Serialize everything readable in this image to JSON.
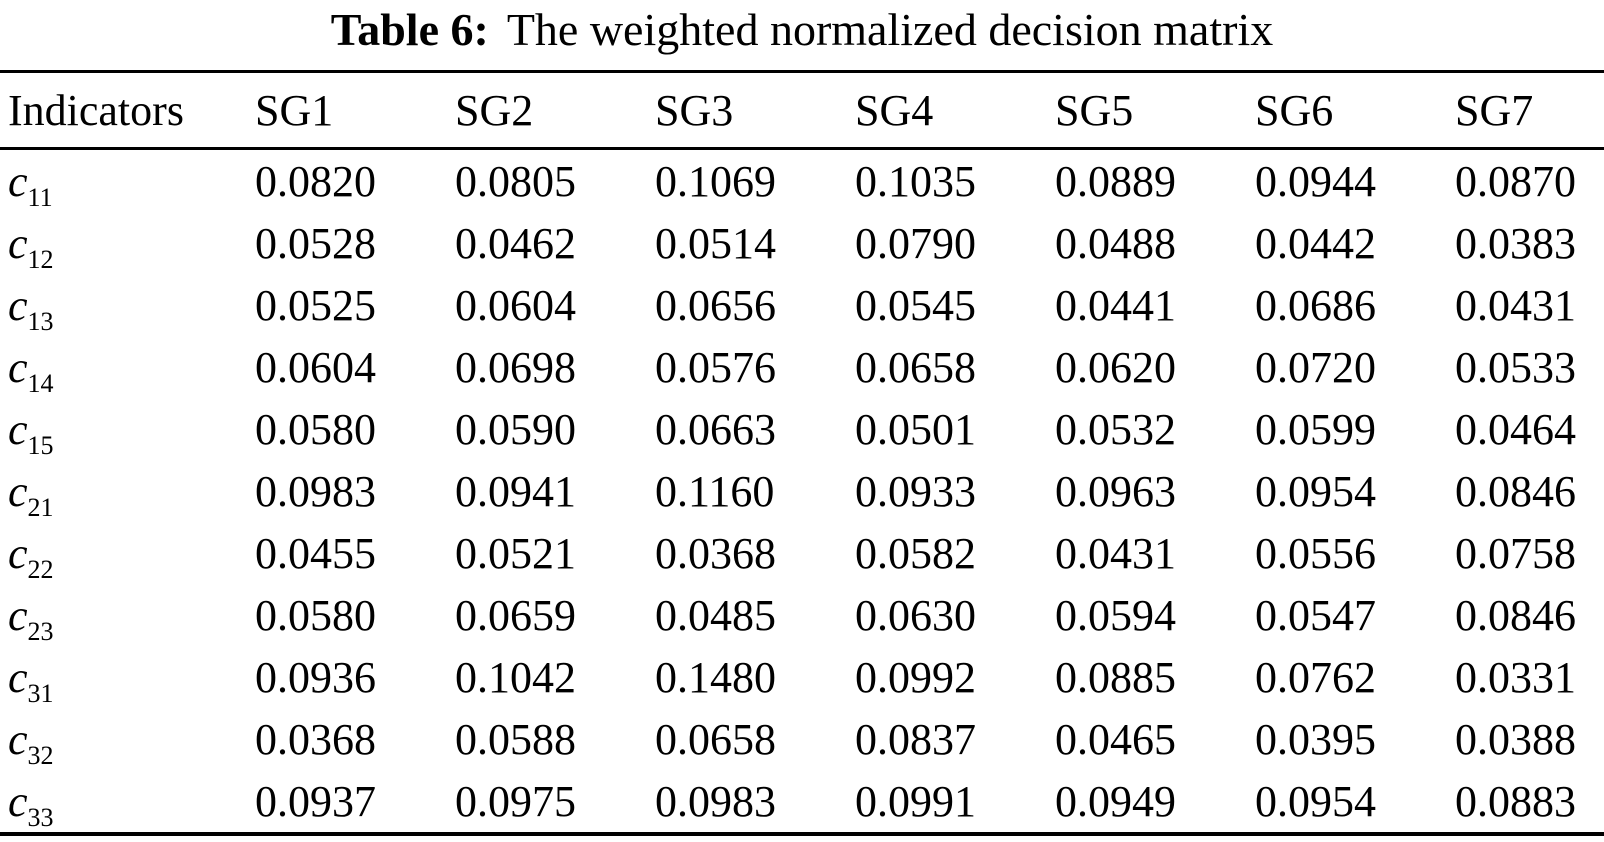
{
  "caption": {
    "label": "Table 6:",
    "text": "The weighted normalized decision matrix"
  },
  "table": {
    "columns": [
      "Indicators",
      "SG1",
      "SG2",
      "SG3",
      "SG4",
      "SG5",
      "SG6",
      "SG7"
    ],
    "rows": [
      {
        "base": "c",
        "sub": "11",
        "values": [
          "0.0820",
          "0.0805",
          "0.1069",
          "0.1035",
          "0.0889",
          "0.0944",
          "0.0870"
        ]
      },
      {
        "base": "c",
        "sub": "12",
        "values": [
          "0.0528",
          "0.0462",
          "0.0514",
          "0.0790",
          "0.0488",
          "0.0442",
          "0.0383"
        ]
      },
      {
        "base": "c",
        "sub": "13",
        "values": [
          "0.0525",
          "0.0604",
          "0.0656",
          "0.0545",
          "0.0441",
          "0.0686",
          "0.0431"
        ]
      },
      {
        "base": "c",
        "sub": "14",
        "values": [
          "0.0604",
          "0.0698",
          "0.0576",
          "0.0658",
          "0.0620",
          "0.0720",
          "0.0533"
        ]
      },
      {
        "base": "c",
        "sub": "15",
        "values": [
          "0.0580",
          "0.0590",
          "0.0663",
          "0.0501",
          "0.0532",
          "0.0599",
          "0.0464"
        ]
      },
      {
        "base": "c",
        "sub": "21",
        "values": [
          "0.0983",
          "0.0941",
          "0.1160",
          "0.0933",
          "0.0963",
          "0.0954",
          "0.0846"
        ]
      },
      {
        "base": "c",
        "sub": "22",
        "values": [
          "0.0455",
          "0.0521",
          "0.0368",
          "0.0582",
          "0.0431",
          "0.0556",
          "0.0758"
        ]
      },
      {
        "base": "c",
        "sub": "23",
        "values": [
          "0.0580",
          "0.0659",
          "0.0485",
          "0.0630",
          "0.0594",
          "0.0547",
          "0.0846"
        ]
      },
      {
        "base": "c",
        "sub": "31",
        "values": [
          "0.0936",
          "0.1042",
          "0.1480",
          "0.0992",
          "0.0885",
          "0.0762",
          "0.0331"
        ]
      },
      {
        "base": "c",
        "sub": "32",
        "values": [
          "0.0368",
          "0.0588",
          "0.0658",
          "0.0837",
          "0.0465",
          "0.0395",
          "0.0388"
        ]
      },
      {
        "base": "c",
        "sub": "33",
        "values": [
          "0.0937",
          "0.0975",
          "0.0983",
          "0.0991",
          "0.0949",
          "0.0954",
          "0.0883"
        ]
      }
    ]
  }
}
